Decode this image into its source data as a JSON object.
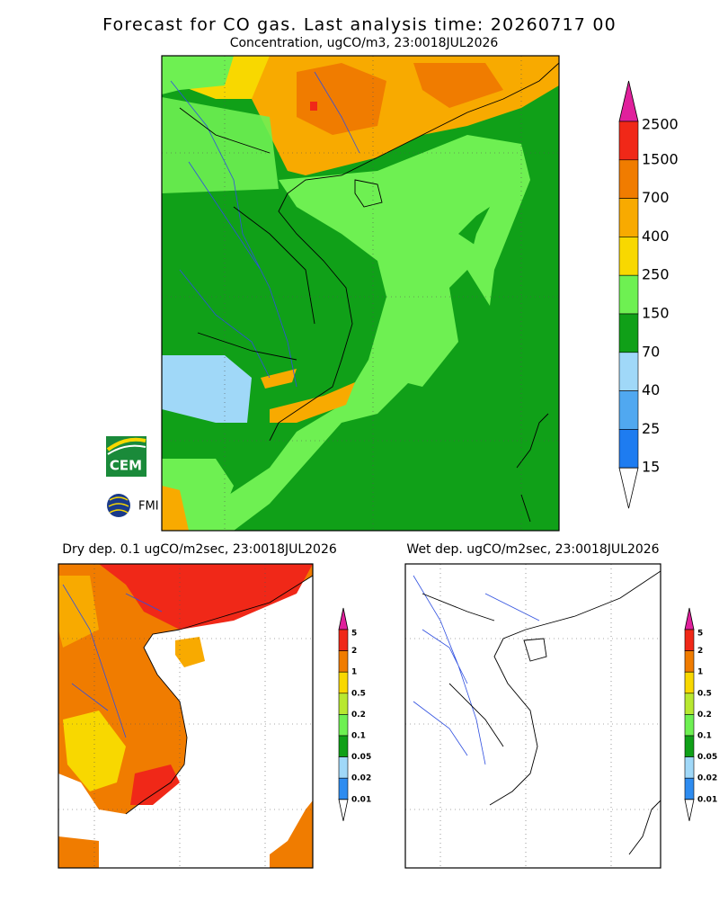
{
  "title": "Forecast for CO gas. Last analysis time: 20260717 00",
  "main_map": {
    "title": "Concentration, ugCO/m3, 23:0018JUL2026",
    "colorbar": {
      "labels": [
        "2500",
        "1500",
        "700",
        "400",
        "250",
        "150",
        "70",
        "40",
        "25",
        "15"
      ],
      "colors": [
        "#e0209c",
        "#f02818",
        "#f07c00",
        "#f8aa00",
        "#f8d800",
        "#6ef052",
        "#10a018",
        "#a0d8f8",
        "#50a8f0",
        "#1e7cf0",
        "#ffffff"
      ]
    }
  },
  "dry_dep": {
    "title": "Dry dep. 0.1 ugCO/m2sec, 23:0018JUL2026",
    "colorbar": {
      "labels": [
        "5",
        "2",
        "1",
        "0.5",
        "0.2",
        "0.1",
        "0.05",
        "0.02",
        "0.01"
      ],
      "colors": [
        "#e0209c",
        "#f02818",
        "#f07c00",
        "#f8d800",
        "#b8e830",
        "#6ef052",
        "#10a018",
        "#a0d8f8",
        "#2e8cf0",
        "#ffffff"
      ]
    }
  },
  "wet_dep": {
    "title": "Wet dep. ugCO/m2sec, 23:0018JUL2026",
    "colorbar": {
      "labels": [
        "5",
        "2",
        "1",
        "0.5",
        "0.2",
        "0.1",
        "0.05",
        "0.02",
        "0.01"
      ],
      "colors": [
        "#e0209c",
        "#f02818",
        "#f07c00",
        "#f8d800",
        "#b8e830",
        "#6ef052",
        "#10a018",
        "#a0d8f8",
        "#2e8cf0",
        "#ffffff"
      ]
    }
  },
  "logos": [
    "CEM",
    "FMI"
  ]
}
